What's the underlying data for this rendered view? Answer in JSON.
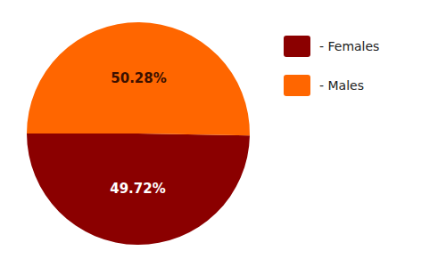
{
  "chart_data": {
    "type": "pie",
    "categories": [
      "- Females",
      "- Males"
    ],
    "values": [
      49.72,
      50.28
    ],
    "value_labels": [
      "49.72%",
      "50.28%"
    ],
    "colors": [
      "#8B0000",
      "#FF6600"
    ],
    "data_labels": true,
    "legend": "upper right"
  }
}
